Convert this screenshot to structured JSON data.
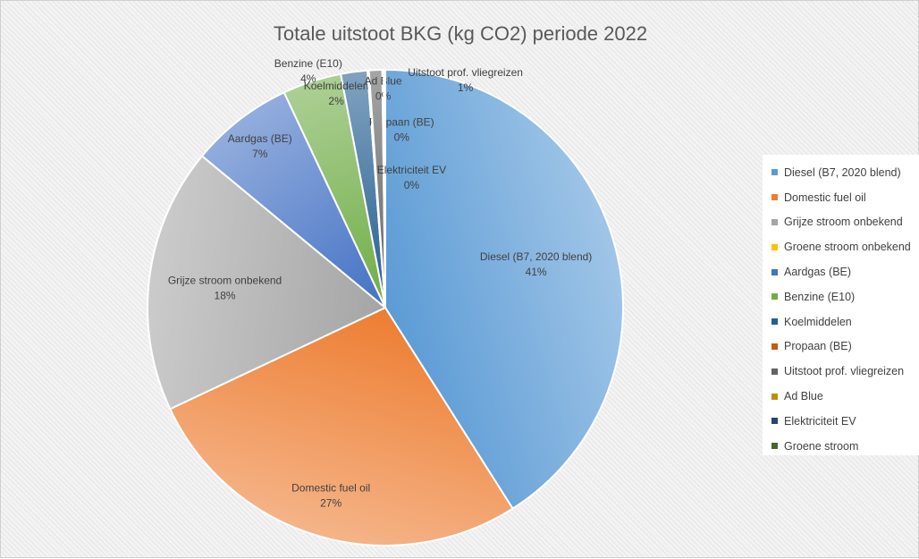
{
  "chart_data": {
    "type": "pie",
    "title": "Totale uitstoot BKG (kg CO2) periode 2022",
    "legend_position": "right",
    "slices": [
      {
        "name": "Diesel (B7, 2020 blend)",
        "value": 41,
        "percent_label": "41%",
        "color": "#5b9bd5"
      },
      {
        "name": "Domestic fuel oil",
        "value": 27,
        "percent_label": "27%",
        "color": "#ed7d31"
      },
      {
        "name": "Grijze stroom onbekend",
        "value": 18,
        "percent_label": "18%",
        "color": "#a5a5a5"
      },
      {
        "name": "Groene stroom onbekend",
        "value": 0,
        "percent_label": "",
        "color": "#ffc000"
      },
      {
        "name": "Aardgas (BE)",
        "value": 7,
        "percent_label": "7%",
        "color": "#4472c4"
      },
      {
        "name": "Benzine (E10)",
        "value": 4,
        "percent_label": "4%",
        "color": "#70ad47"
      },
      {
        "name": "Koelmiddelen",
        "value": 1.8,
        "percent_label": "2%",
        "color": "#255e91"
      },
      {
        "name": "Propaan (BE)",
        "value": 0.1,
        "percent_label": "0%",
        "color": "#c55a11"
      },
      {
        "name": "Uitstoot prof. vliegreizen",
        "value": 0.9,
        "percent_label": "1%",
        "color": "#636363"
      },
      {
        "name": "Ad Blue",
        "value": 0.1,
        "percent_label": "0%",
        "color": "#bf9000"
      },
      {
        "name": "Elektriciteit EV",
        "value": 0.1,
        "percent_label": "0%",
        "color": "#264478"
      },
      {
        "name": "Groene stroom",
        "value": 0,
        "percent_label": "",
        "color": "#43682b"
      }
    ]
  }
}
